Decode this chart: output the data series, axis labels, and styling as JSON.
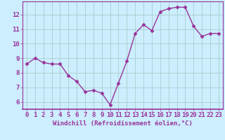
{
  "x": [
    0,
    1,
    2,
    3,
    4,
    5,
    6,
    7,
    8,
    9,
    10,
    11,
    12,
    13,
    14,
    15,
    16,
    17,
    18,
    19,
    20,
    21,
    22,
    23
  ],
  "y": [
    8.6,
    9.0,
    8.7,
    8.6,
    8.6,
    7.8,
    7.4,
    6.7,
    6.8,
    6.6,
    5.8,
    7.3,
    8.8,
    10.7,
    11.3,
    10.9,
    12.2,
    12.4,
    12.5,
    12.5,
    11.2,
    10.5,
    10.7,
    10.7
  ],
  "line_color": "#993399",
  "marker": "D",
  "marker_size": 2.5,
  "bg_color": "#cceeff",
  "grid_color": "#aacccc",
  "xlabel": "Windchill (Refroidissement éolien,°C)",
  "ylabel_ticks": [
    6,
    7,
    8,
    9,
    10,
    11,
    12
  ],
  "ylim": [
    5.5,
    12.9
  ],
  "xlim": [
    -0.5,
    23.5
  ],
  "tick_color": "#993399",
  "label_color": "#993399",
  "xlabel_color": "#993399",
  "xlabel_fontsize": 6.5,
  "tick_fontsize": 6.5,
  "linewidth": 1.0
}
